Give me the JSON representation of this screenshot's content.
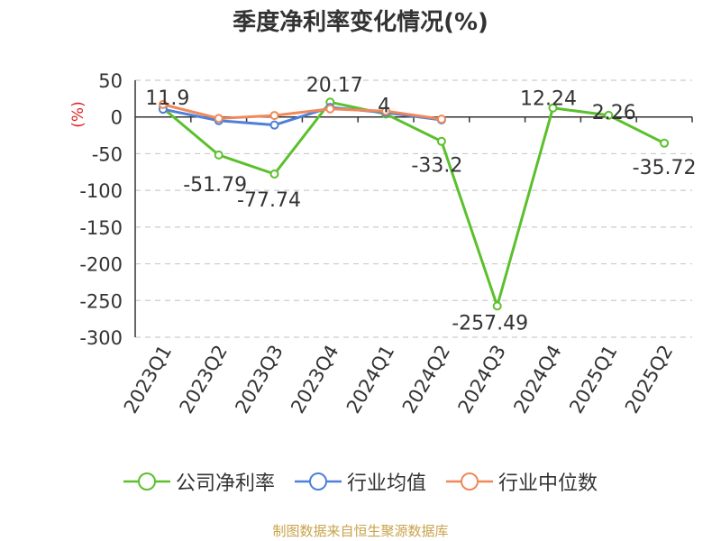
{
  "chart_data": {
    "type": "line",
    "title": "季度净利率变化情况(%)",
    "ylabel": "(%)",
    "categories": [
      "2023Q1",
      "2023Q2",
      "2023Q3",
      "2023Q4",
      "2024Q1",
      "2024Q2",
      "2024Q3",
      "2024Q4",
      "2025Q1",
      "2025Q2"
    ],
    "ylim": [
      -300,
      50
    ],
    "yticks": [
      50,
      0,
      -50,
      -100,
      -150,
      -200,
      -250,
      -300
    ],
    "grid": true,
    "legend_position": "bottom",
    "series": [
      {
        "name": "公司净利率",
        "color": "#5bc02c",
        "values": [
          11.9,
          -51.79,
          -77.74,
          20.17,
          4,
          -33.2,
          -257.49,
          12.24,
          2.26,
          -35.72
        ],
        "labels": [
          "11.9",
          "-51.79",
          "-77.74",
          "20.17",
          "4",
          "-33.2",
          "-257.49",
          "12.24",
          "2.26",
          "-35.72"
        ]
      },
      {
        "name": "行业均值",
        "color": "#4d7fdb",
        "values": [
          10.5,
          -5,
          -11,
          13,
          6,
          -4,
          null,
          null,
          null,
          null
        ]
      },
      {
        "name": "行业中位数",
        "color": "#f0885a",
        "values": [
          17,
          -2,
          2,
          11,
          8,
          -3,
          null,
          null,
          null,
          null
        ]
      }
    ]
  },
  "source": "制图数据来自恒生聚源数据库"
}
